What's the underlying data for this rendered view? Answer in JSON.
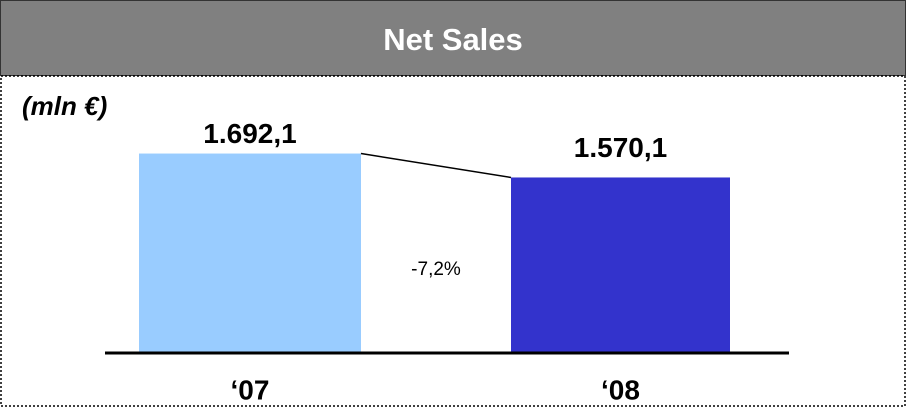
{
  "chart_data": {
    "type": "bar",
    "title": "Net Sales",
    "unit_label": "(mln €)",
    "categories": [
      "‘07",
      "‘08"
    ],
    "values": [
      1692.1,
      1570.1
    ],
    "value_labels": [
      "1.692,1",
      "1.570,1"
    ],
    "colors": [
      "#99ccff",
      "#3333cc"
    ],
    "annotation": "-7,2%",
    "ylim": [
      680,
      1700
    ]
  }
}
